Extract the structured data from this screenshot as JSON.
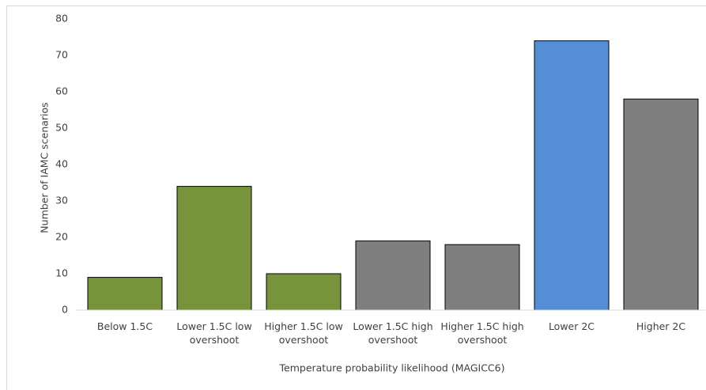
{
  "chart_data": {
    "type": "bar",
    "categories": [
      "Below 1.5C",
      "Lower 1.5C low overshoot",
      "Higher 1.5C low overshoot",
      "Lower 1.5C high overshoot",
      "Higher 1.5C high overshoot",
      "Lower 2C",
      "Higher 2C"
    ],
    "values": [
      9,
      34,
      10,
      19,
      18,
      74,
      58
    ],
    "colors": [
      "#77933c",
      "#77933c",
      "#77933c",
      "#7f7f7f",
      "#7f7f7f",
      "#558ed5",
      "#7f7f7f"
    ],
    "ylim": [
      0,
      80
    ],
    "yticks": [
      0,
      10,
      20,
      30,
      40,
      50,
      60,
      70,
      80
    ],
    "x_label": "Temperature probability likelihood (MAGICC6)",
    "y_label": "Number of IAMC scenarios",
    "grid": false
  }
}
